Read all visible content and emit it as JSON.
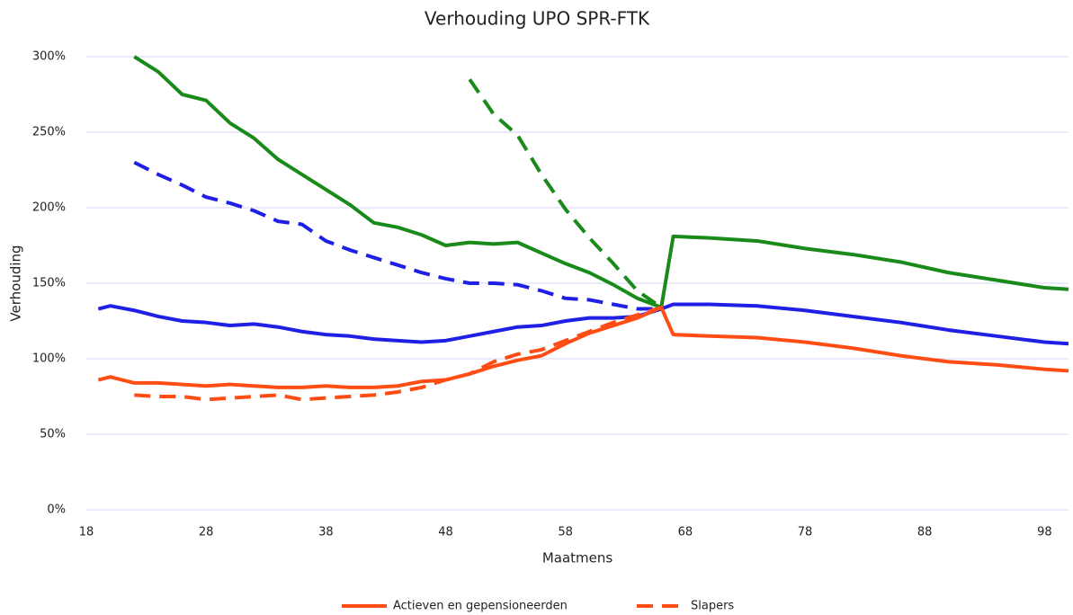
{
  "chart_data": {
    "type": "line",
    "title": "Verhouding UPO SPR-FTK",
    "x_label": "Maatmens",
    "y_label": "Verhouding",
    "x": [
      19,
      20,
      22,
      24,
      26,
      28,
      30,
      32,
      34,
      36,
      38,
      40,
      42,
      44,
      46,
      48,
      50,
      52,
      54,
      56,
      58,
      60,
      62,
      64,
      66,
      67,
      70,
      74,
      78,
      82,
      86,
      90,
      94,
      98,
      100
    ],
    "xlim": [
      18,
      100
    ],
    "xticks": [
      18,
      28,
      38,
      48,
      58,
      68,
      78,
      88,
      98
    ],
    "ylim": [
      0,
      300
    ],
    "yticks": [
      {
        "value": 0,
        "label": "0%"
      },
      {
        "value": 50,
        "label": "50%"
      },
      {
        "value": 100,
        "label": "100%"
      },
      {
        "value": 150,
        "label": "150%"
      },
      {
        "value": 200,
        "label": "200%"
      },
      {
        "value": 250,
        "label": "250%"
      },
      {
        "value": 300,
        "label": "300%"
      }
    ],
    "grid": true,
    "legend": "bottom",
    "series": [
      {
        "color": "#1a8a1a",
        "line_style": "solid",
        "values": [
          null,
          null,
          300,
          290,
          275,
          271,
          256,
          246,
          232,
          222,
          212,
          202,
          190,
          187,
          182,
          175,
          177,
          176,
          177,
          170,
          163,
          157,
          149,
          140,
          134,
          181,
          180,
          178,
          173,
          169,
          164,
          157,
          152,
          147,
          146
        ]
      },
      {
        "color": "#1f1fe6",
        "line_style": "solid",
        "values": [
          133,
          135,
          132,
          128,
          125,
          124,
          122,
          123,
          121,
          118,
          116,
          115,
          113,
          112,
          111,
          112,
          115,
          118,
          121,
          122,
          125,
          127,
          127,
          128,
          133,
          136,
          136,
          135,
          132,
          128,
          124,
          119,
          115,
          111,
          110
        ]
      },
      {
        "name": "Actieven en gepensioneerden",
        "color": "#ff4d14",
        "line_style": "solid",
        "values": [
          86,
          88,
          84,
          84,
          83,
          82,
          83,
          82,
          81,
          81,
          82,
          81,
          81,
          82,
          85,
          86,
          90,
          95,
          99,
          102,
          110,
          117,
          122,
          127,
          134,
          116,
          115,
          114,
          111,
          107,
          102,
          98,
          96,
          93,
          92
        ]
      },
      {
        "color": "#1a8a1a",
        "line_style": "dashed",
        "values": [
          null,
          null,
          null,
          null,
          null,
          null,
          null,
          null,
          null,
          null,
          null,
          null,
          null,
          null,
          null,
          null,
          285,
          262,
          248,
          222,
          199,
          180,
          163,
          145,
          134,
          null,
          null,
          null,
          null,
          null,
          null,
          null,
          null,
          null,
          null
        ]
      },
      {
        "color": "#1f1fe6",
        "line_style": "dashed",
        "values": [
          null,
          null,
          230,
          222,
          215,
          207,
          203,
          198,
          191,
          189,
          178,
          172,
          167,
          162,
          157,
          153,
          150,
          150,
          149,
          145,
          140,
          139,
          136,
          133,
          133,
          null,
          null,
          null,
          null,
          null,
          null,
          null,
          null,
          null,
          null
        ]
      },
      {
        "name": "Slapers",
        "color": "#ff4d14",
        "line_style": "dashed",
        "values": [
          null,
          null,
          76,
          75,
          75,
          73,
          74,
          75,
          76,
          73,
          74,
          75,
          76,
          78,
          81,
          86,
          90,
          98,
          103,
          106,
          112,
          118,
          124,
          129,
          134,
          null,
          null,
          null,
          null,
          null,
          null,
          null,
          null,
          null,
          null
        ]
      }
    ]
  }
}
